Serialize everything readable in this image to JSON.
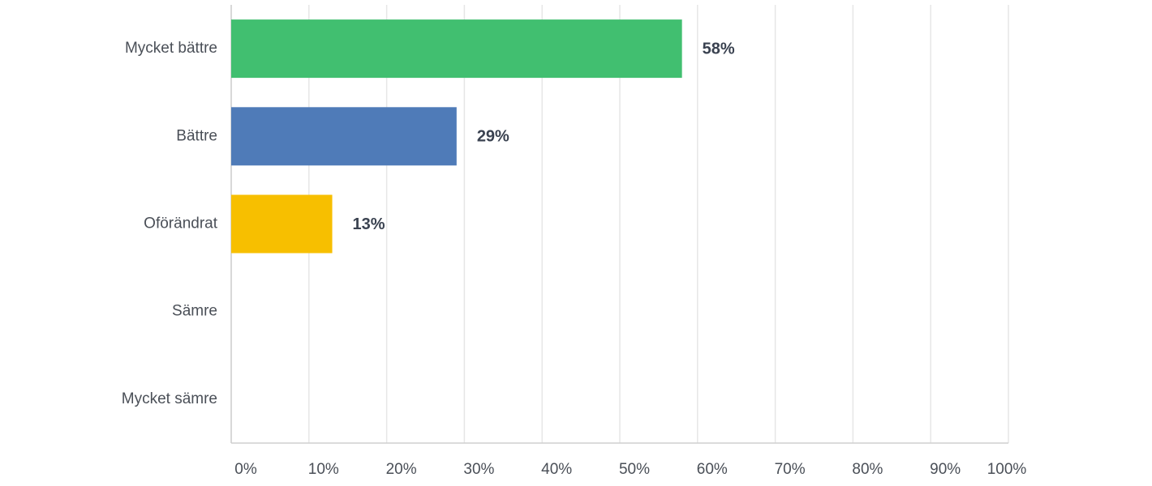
{
  "chart_data": {
    "type": "hbar",
    "categories": [
      "Mycket bättre",
      "Bättre",
      "Oförändrat",
      "Sämre",
      "Mycket sämre"
    ],
    "values": [
      58,
      29,
      13,
      0,
      0
    ],
    "value_labels": [
      "58%",
      "29%",
      "13%",
      null,
      null
    ],
    "colors": [
      "#41bf70",
      "#4f7bb8",
      "#f7bf00",
      "#41bf70",
      "#41bf70"
    ],
    "xlim": [
      0,
      100
    ],
    "xticks": [
      {
        "value": 0,
        "label": "0%"
      },
      {
        "value": 10,
        "label": "10%"
      },
      {
        "value": 20,
        "label": "20%"
      },
      {
        "value": 30,
        "label": "30%"
      },
      {
        "value": 40,
        "label": "40%"
      },
      {
        "value": 50,
        "label": "50%"
      },
      {
        "value": 60,
        "label": "60%"
      },
      {
        "value": 70,
        "label": "70%"
      },
      {
        "value": 80,
        "label": "80%"
      },
      {
        "value": 90,
        "label": "90%"
      },
      {
        "value": 100,
        "label": "100%"
      }
    ],
    "grid": true
  }
}
